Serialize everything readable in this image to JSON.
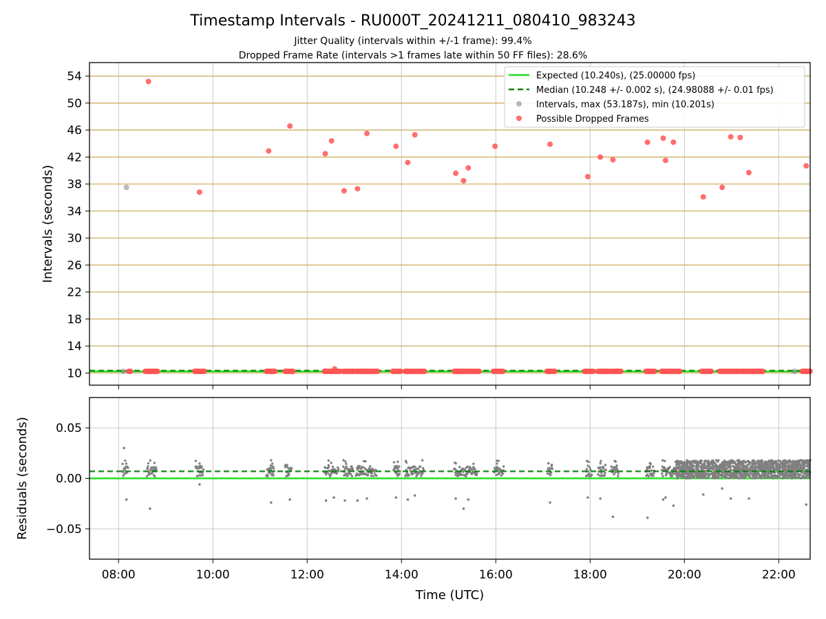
{
  "chart_data": [
    {
      "type": "scatter",
      "title": "Timestamp Intervals - RU000T_20241211_080410_983243",
      "subtitles": [
        "Jitter Quality (intervals within +/-1 frame): 99.4%",
        "Dropped Frame Rate (intervals >1 frames late within 50 FF files): 28.6%"
      ],
      "ylabel": "Intervals (seconds)",
      "xlim": [
        "07:23",
        "22:40"
      ],
      "ylim": [
        8.2,
        56.0
      ],
      "yticks": [
        10,
        14,
        18,
        22,
        26,
        30,
        34,
        38,
        42,
        46,
        50,
        54
      ],
      "xticks": [
        "08:00",
        "10:00",
        "12:00",
        "14:00",
        "16:00",
        "18:00",
        "20:00",
        "22:00"
      ],
      "grid": true,
      "legend_position": "top-right",
      "legend": [
        "Expected (10.240s), (25.00000 fps)",
        "Median (10.248 +/- 0.002 s), (24.98088 +/- 0.01 fps)",
        "Intervals, max (53.187s), min (10.201s)",
        "Possible Dropped Frames"
      ],
      "expected": 10.24,
      "median": 10.248,
      "series": [
        {
          "name": "Intervals, max (53.187s), min (10.201s)",
          "points": [
            {
              "x": "08:10",
              "y": 37.5
            },
            {
              "x": "08:06",
              "y": 10.25
            },
            {
              "x": "08:40",
              "y": 10.25
            },
            {
              "x": "09:40",
              "y": 10.25
            },
            {
              "x": "11:15",
              "y": 10.25
            },
            {
              "x": "12:30",
              "y": 10.25
            },
            {
              "x": "13:15",
              "y": 10.25
            },
            {
              "x": "14:05",
              "y": 10.25
            },
            {
              "x": "15:15",
              "y": 10.25
            },
            {
              "x": "16:05",
              "y": 10.25
            },
            {
              "x": "17:10",
              "y": 10.25
            },
            {
              "x": "18:20",
              "y": 10.25
            },
            {
              "x": "19:45",
              "y": 10.25
            },
            {
              "x": "20:45",
              "y": 10.25
            },
            {
              "x": "21:30",
              "y": 10.25
            },
            {
              "x": "22:20",
              "y": 10.25
            }
          ]
        },
        {
          "name": "Possible Dropped Frames",
          "points": [
            {
              "x": "08:38",
              "y": 53.2
            },
            {
              "x": "09:43",
              "y": 36.8
            },
            {
              "x": "11:11",
              "y": 42.9
            },
            {
              "x": "11:38",
              "y": 46.6
            },
            {
              "x": "12:23",
              "y": 42.5
            },
            {
              "x": "12:31",
              "y": 44.4
            },
            {
              "x": "12:47",
              "y": 37.0
            },
            {
              "x": "13:04",
              "y": 37.3
            },
            {
              "x": "13:16",
              "y": 45.5
            },
            {
              "x": "13:53",
              "y": 43.6
            },
            {
              "x": "14:08",
              "y": 41.2
            },
            {
              "x": "14:17",
              "y": 45.3
            },
            {
              "x": "15:09",
              "y": 39.6
            },
            {
              "x": "15:19",
              "y": 38.5
            },
            {
              "x": "15:25",
              "y": 40.4
            },
            {
              "x": "15:59",
              "y": 43.6
            },
            {
              "x": "17:09",
              "y": 43.9
            },
            {
              "x": "17:57",
              "y": 39.1
            },
            {
              "x": "18:13",
              "y": 42.0
            },
            {
              "x": "18:29",
              "y": 41.6
            },
            {
              "x": "19:13",
              "y": 44.2
            },
            {
              "x": "19:33",
              "y": 44.8
            },
            {
              "x": "19:36",
              "y": 41.5
            },
            {
              "x": "19:46",
              "y": 44.2
            },
            {
              "x": "20:24",
              "y": 36.1
            },
            {
              "x": "20:48",
              "y": 37.5
            },
            {
              "x": "20:59",
              "y": 45.0
            },
            {
              "x": "21:11",
              "y": 44.9
            },
            {
              "x": "21:22",
              "y": 39.7
            },
            {
              "x": "22:35",
              "y": 40.7
            },
            {
              "x": "12:35",
              "y": 10.6
            }
          ],
          "baseline_value": 10.25,
          "baseline_clusters": [
            [
              "08:13",
              "08:16"
            ],
            [
              "08:34",
              "08:50"
            ],
            [
              "09:37",
              "09:50"
            ],
            [
              "11:08",
              "11:20"
            ],
            [
              "11:32",
              "11:42"
            ],
            [
              "12:22",
              "12:42"
            ],
            [
              "12:46",
              "13:00"
            ],
            [
              "13:02",
              "13:30"
            ],
            [
              "13:49",
              "13:59"
            ],
            [
              "14:05",
              "14:30"
            ],
            [
              "15:07",
              "15:40"
            ],
            [
              "15:57",
              "16:10"
            ],
            [
              "17:05",
              "17:15"
            ],
            [
              "17:53",
              "18:05"
            ],
            [
              "18:10",
              "18:25"
            ],
            [
              "18:27",
              "18:40"
            ],
            [
              "19:11",
              "19:23"
            ],
            [
              "19:31",
              "19:55"
            ],
            [
              "20:22",
              "20:35"
            ],
            [
              "20:45",
              "21:10"
            ],
            [
              "21:12",
              "21:40"
            ],
            [
              "22:30",
              "22:40"
            ]
          ]
        }
      ],
      "colors": {
        "expected": "#22e022",
        "median": "#008000",
        "intervals": "#808080",
        "dropped": "#ff5555",
        "hgrid": "#d2b46e",
        "vgrid": "#c8c8c8"
      }
    },
    {
      "type": "scatter",
      "ylabel": "Residuals (seconds)",
      "xlabel": "Time (UTC)",
      "xlim": [
        "07:23",
        "22:40"
      ],
      "ylim": [
        -0.08,
        0.08
      ],
      "yticks": [
        0.05,
        0.0,
        -0.05
      ],
      "ytick_labels": [
        "0.05",
        "0.00",
        "−0.05"
      ],
      "xticks": [
        "08:00",
        "10:00",
        "12:00",
        "14:00",
        "16:00",
        "18:00",
        "20:00",
        "22:00"
      ],
      "grid": true,
      "expected": 0.0,
      "median": 0.007,
      "outliers": [
        {
          "x": "08:07",
          "y": 0.03
        },
        {
          "x": "08:10",
          "y": -0.021
        },
        {
          "x": "08:40",
          "y": -0.03
        },
        {
          "x": "09:43",
          "y": -0.006
        },
        {
          "x": "11:14",
          "y": -0.024
        },
        {
          "x": "11:38",
          "y": -0.021
        },
        {
          "x": "12:24",
          "y": -0.022
        },
        {
          "x": "12:34",
          "y": -0.019
        },
        {
          "x": "12:48",
          "y": -0.022
        },
        {
          "x": "13:04",
          "y": -0.022
        },
        {
          "x": "13:16",
          "y": -0.02
        },
        {
          "x": "13:53",
          "y": -0.019
        },
        {
          "x": "14:08",
          "y": -0.021
        },
        {
          "x": "14:17",
          "y": -0.017
        },
        {
          "x": "15:09",
          "y": -0.02
        },
        {
          "x": "15:19",
          "y": -0.03
        },
        {
          "x": "15:25",
          "y": -0.021
        },
        {
          "x": "17:09",
          "y": -0.024
        },
        {
          "x": "17:57",
          "y": -0.019
        },
        {
          "x": "18:13",
          "y": -0.02
        },
        {
          "x": "18:29",
          "y": -0.038
        },
        {
          "x": "19:13",
          "y": -0.039
        },
        {
          "x": "19:33",
          "y": -0.021
        },
        {
          "x": "19:36",
          "y": -0.019
        },
        {
          "x": "19:46",
          "y": -0.027
        },
        {
          "x": "20:24",
          "y": -0.016
        },
        {
          "x": "20:48",
          "y": -0.01
        },
        {
          "x": "20:59",
          "y": -0.02
        },
        {
          "x": "21:22",
          "y": -0.02
        },
        {
          "x": "22:35",
          "y": -0.026
        }
      ],
      "clusters": [
        [
          "08:05",
          "08:12"
        ],
        [
          "08:36",
          "08:48"
        ],
        [
          "09:38",
          "09:48"
        ],
        [
          "11:08",
          "11:18"
        ],
        [
          "11:32",
          "11:40"
        ],
        [
          "12:22",
          "12:40"
        ],
        [
          "12:46",
          "12:58"
        ],
        [
          "13:02",
          "13:28"
        ],
        [
          "13:50",
          "13:58"
        ],
        [
          "14:05",
          "14:28"
        ],
        [
          "15:07",
          "15:36"
        ],
        [
          "15:58",
          "16:10"
        ],
        [
          "17:06",
          "17:12"
        ],
        [
          "17:55",
          "18:02"
        ],
        [
          "18:10",
          "18:20"
        ],
        [
          "18:27",
          "18:36"
        ],
        [
          "19:11",
          "19:22"
        ],
        [
          "19:31",
          "19:50"
        ]
      ],
      "dense_band": {
        "x": [
          "19:50",
          "22:40"
        ],
        "y": [
          0.0,
          0.018
        ]
      }
    }
  ]
}
